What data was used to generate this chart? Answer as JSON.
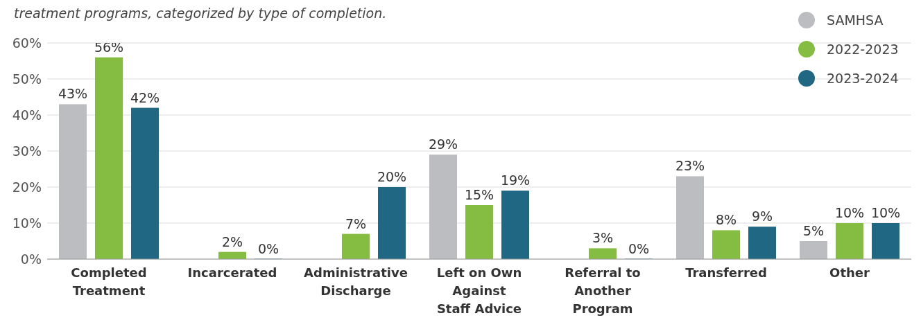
{
  "chart_data": {
    "type": "bar",
    "subtitle": "treatment programs, categorized by type of completion.",
    "categories": [
      "Completed Treatment",
      "Incarcerated",
      "Administrative Discharge",
      "Left on Own Against Staff Advice",
      "Referral to Another Program",
      "Transferred",
      "Other"
    ],
    "series": [
      {
        "name": "SAMHSA",
        "color": "#bcbdc0",
        "values": [
          43,
          null,
          null,
          29,
          null,
          23,
          5
        ],
        "value_labels": [
          "43%",
          null,
          null,
          "29%",
          null,
          "23%",
          "5%"
        ]
      },
      {
        "name": "2022-2023",
        "color": "#84bd41",
        "values": [
          56,
          2,
          7,
          15,
          3,
          8,
          10
        ],
        "value_labels": [
          "56%",
          "2%",
          "7%",
          "15%",
          "3%",
          "8%",
          "10%"
        ]
      },
      {
        "name": "2023-2024",
        "color": "#206784",
        "values": [
          42,
          0,
          20,
          19,
          0,
          9,
          10
        ],
        "value_labels": [
          "42%",
          "0%",
          "20%",
          "19%",
          "0%",
          "9%",
          "10%"
        ]
      }
    ],
    "ylim": [
      0,
      60
    ],
    "yticks": [
      {
        "value": 0,
        "label": "0%"
      },
      {
        "value": 10,
        "label": "10%"
      },
      {
        "value": 20,
        "label": "20%"
      },
      {
        "value": 30,
        "label": "30%"
      },
      {
        "value": 40,
        "label": "40%"
      },
      {
        "value": 50,
        "label": "50%"
      },
      {
        "value": 60,
        "label": "60%"
      }
    ],
    "grid": "y",
    "legend": "top right"
  }
}
